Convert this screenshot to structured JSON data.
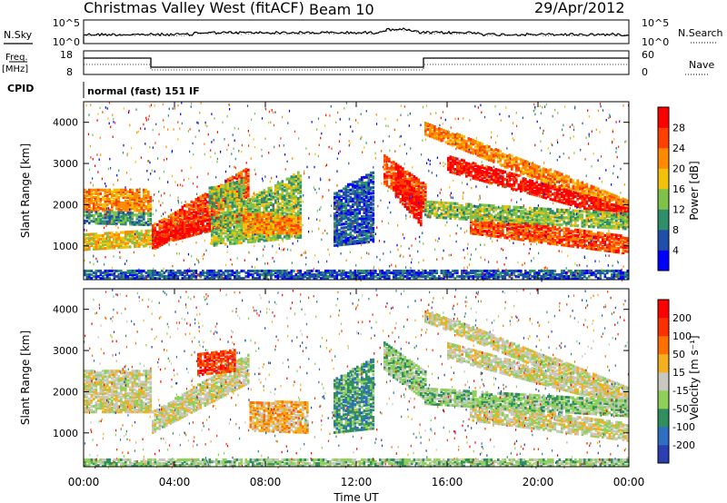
{
  "header": {
    "station": "Christmas Valley West (fitACF)",
    "beam": "Beam 10",
    "date": "29/Apr/2012"
  },
  "noise_panel": {
    "label_left": "N.Sky",
    "label_right": "N.Search",
    "tick_top": "10^5",
    "tick_bottom": "10^0"
  },
  "freq_panel": {
    "label_left_1": "Freq.",
    "label_left_2": "[MHz]",
    "label_right": "Nave",
    "left_ticks": [
      "18",
      "8"
    ],
    "right_ticks": [
      "60",
      "0"
    ]
  },
  "cpid": {
    "label": "CPID",
    "value": "normal (fast) 151 IF"
  },
  "x_axis": {
    "label": "Time UT",
    "ticks": [
      "00:00",
      "04:00",
      "08:00",
      "12:00",
      "16:00",
      "20:00",
      "00:00"
    ]
  },
  "chart_data": [
    {
      "type": "heatmap",
      "name": "power",
      "ylabel": "Slant Range [km]",
      "yticks": [
        1000,
        2000,
        3000,
        4000
      ],
      "ylim": [
        180,
        4500
      ],
      "xlim_hours": [
        0,
        24
      ],
      "colorbar": {
        "label": "Power [dB]",
        "ticks": [
          "28",
          "24",
          "20",
          "16",
          "12",
          "8",
          "4"
        ],
        "colors": [
          "#0000ff",
          "#1f4fa8",
          "#2e8f6a",
          "#7fc24a",
          "#f2c20a",
          "#ff8a00",
          "#ff4000",
          "#ff0000"
        ]
      }
    },
    {
      "type": "heatmap",
      "name": "velocity",
      "ylabel": "Slant Range [km]",
      "yticks": [
        1000,
        2000,
        3000,
        4000
      ],
      "ylim": [
        180,
        4500
      ],
      "xlim_hours": [
        0,
        24
      ],
      "colorbar": {
        "label": "Velocity [m s⁻¹]",
        "ticks": [
          "200",
          "100",
          "50",
          "15",
          "-15",
          "-50",
          "-100",
          "-200"
        ],
        "colors": [
          "#2a3fb0",
          "#2f6fc0",
          "#2f8f5f",
          "#8fd05a",
          "#c8c8c0",
          "#f5b020",
          "#ff7000",
          "#ff3000",
          "#ff0000"
        ]
      }
    }
  ]
}
